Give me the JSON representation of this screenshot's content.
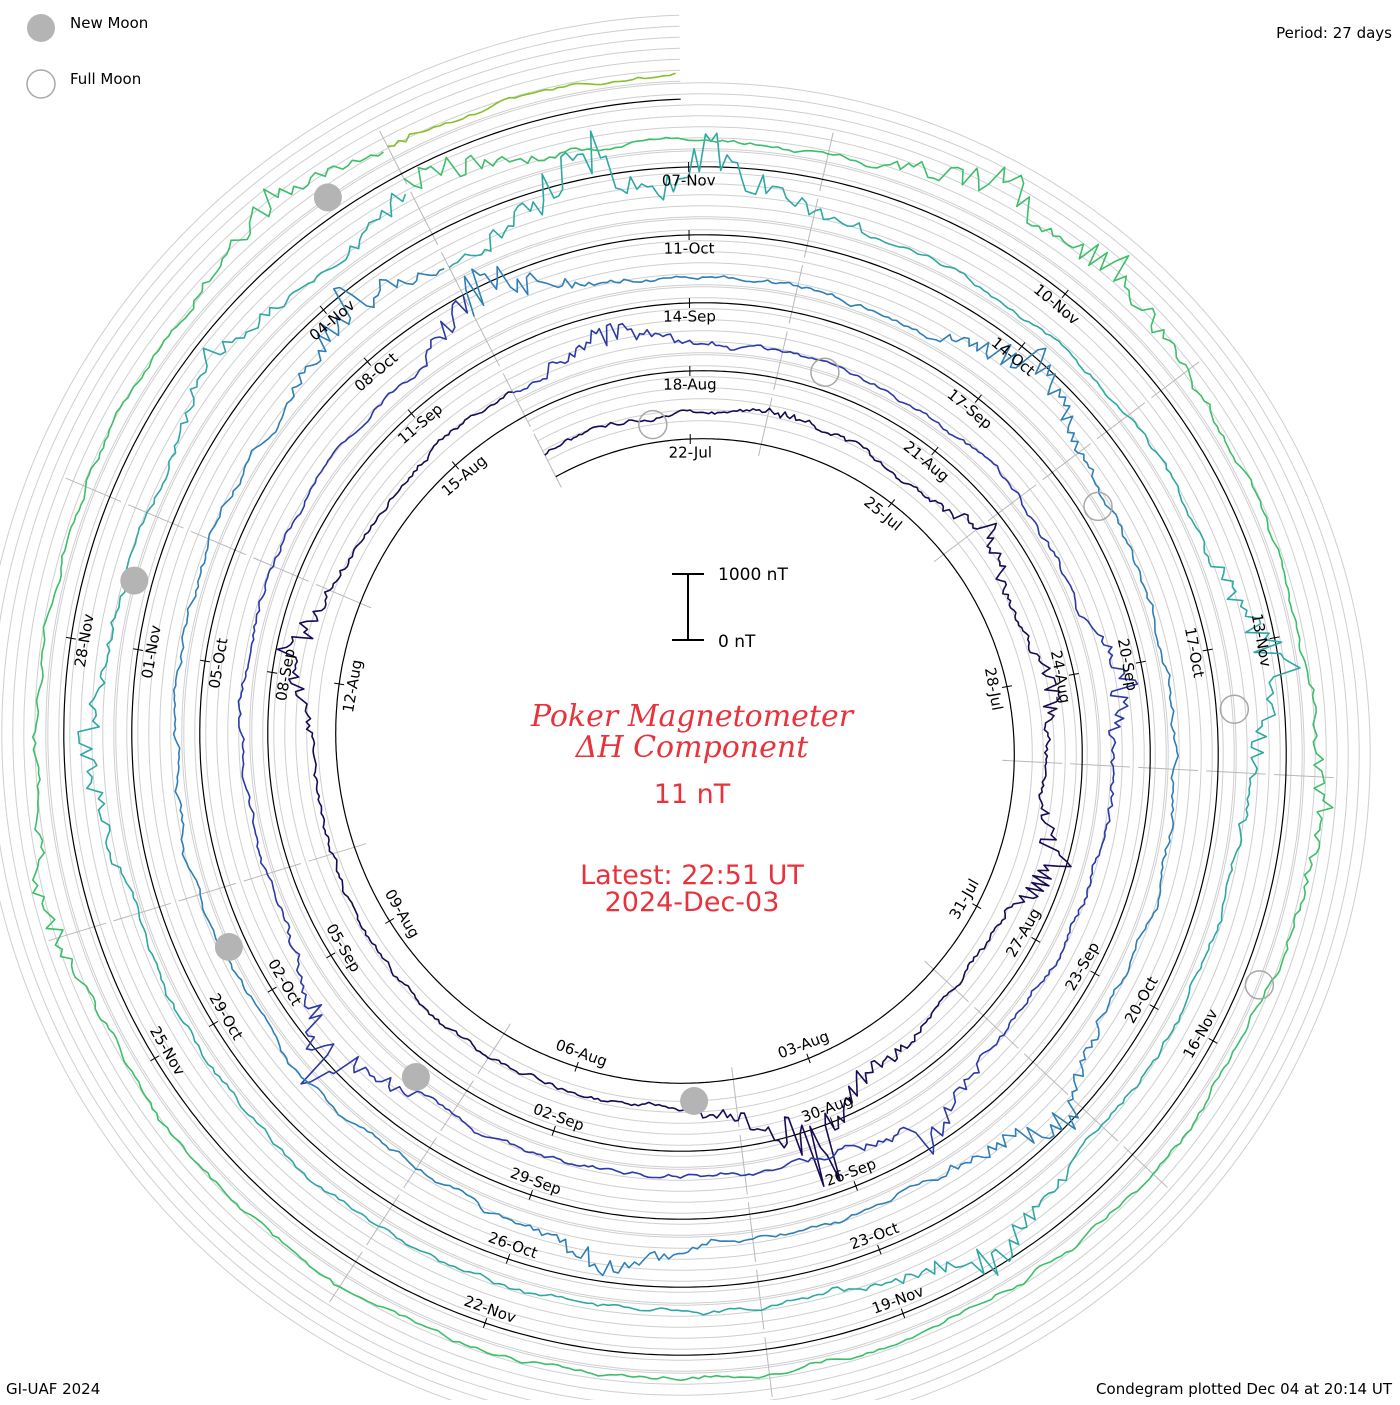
{
  "legend": {
    "new_moon_label": "New Moon",
    "full_moon_label": "Full Moon"
  },
  "period_text": "Period: 27 days",
  "title_line1": "Poker Magnetometer",
  "title_line2": "ΔH Component",
  "scale_value": "11 nT",
  "latest_line1": "Latest: 22:51 UT",
  "latest_line2": "2024-Dec-03",
  "scale_bar": {
    "top_label": "1000 nT",
    "bottom_label": "0 nT"
  },
  "footer_left": "GI-UAF 2024",
  "footer_right": "Condegram plotted Dec 04 at 20:14 UT",
  "colors": {
    "moon_fill": "#b4b4b4",
    "title_red": "#e8323c",
    "series": [
      "#1a0a55",
      "#2b3aa8",
      "#2f7fb8",
      "#2ea8a3",
      "#3cbf6a",
      "#86c02a",
      "#c3a817",
      "#c77818",
      "#b51d12"
    ]
  },
  "chart_data": {
    "type": "line",
    "period_days": 27,
    "start": "20-Jul",
    "end": "03-Dec",
    "units": "nT",
    "date_ticks": [
      "22-Jul",
      "25-Jul",
      "28-Jul",
      "31-Jul",
      "03-Aug",
      "06-Aug",
      "09-Aug",
      "12-Aug",
      "15-Aug",
      "18-Aug",
      "21-Aug",
      "24-Aug",
      "27-Aug",
      "30-Aug",
      "02-Sep",
      "05-Sep",
      "08-Sep",
      "11-Sep",
      "14-Sep",
      "17-Sep",
      "20-Sep",
      "23-Sep",
      "26-Sep",
      "29-Sep",
      "02-Oct",
      "05-Oct",
      "08-Oct",
      "11-Oct",
      "14-Oct",
      "17-Oct",
      "20-Oct",
      "23-Oct",
      "26-Oct",
      "29-Oct",
      "01-Nov",
      "04-Nov",
      "07-Nov",
      "10-Nov",
      "13-Nov",
      "16-Nov",
      "19-Nov",
      "22-Nov",
      "25-Nov",
      "28-Nov"
    ],
    "moon_phases": [
      {
        "type": "full",
        "date": "21-Jul"
      },
      {
        "type": "new",
        "date": "04-Aug"
      },
      {
        "type": "full",
        "date": "19-Aug"
      },
      {
        "type": "new",
        "date": "03-Sep"
      },
      {
        "type": "full",
        "date": "18-Sep"
      },
      {
        "type": "new",
        "date": "02-Oct"
      },
      {
        "type": "full",
        "date": "17-Oct"
      },
      {
        "type": "new",
        "date": "01-Nov"
      },
      {
        "type": "full",
        "date": "15-Nov"
      },
      {
        "type": "new",
        "date": "01-Dec"
      }
    ],
    "disturbances": [
      {
        "date": "23-Jul",
        "nT": 150
      },
      {
        "date": "26-Jul",
        "nT": 500
      },
      {
        "date": "28-Jul",
        "nT": 400
      },
      {
        "date": "30-Jul",
        "nT": 700
      },
      {
        "date": "02-Aug",
        "nT": 300
      },
      {
        "date": "03-Aug",
        "nT": 1400
      },
      {
        "date": "12-Aug",
        "nT": 650
      },
      {
        "date": "17-Aug",
        "nT": 600
      },
      {
        "date": "24-Aug",
        "nT": 450
      },
      {
        "date": "29-Aug",
        "nT": 600
      },
      {
        "date": "04-Sep",
        "nT": 900
      },
      {
        "date": "12-Sep",
        "nT": 900
      },
      {
        "date": "17-Sep",
        "nT": 800
      },
      {
        "date": "24-Sep",
        "nT": 700
      },
      {
        "date": "28-Sep",
        "nT": 500
      },
      {
        "date": "08-Oct",
        "nT": 700
      },
      {
        "date": "10-Oct",
        "nT": 1300
      },
      {
        "date": "11-Oct",
        "nT": 1100
      },
      {
        "date": "17-Oct",
        "nT": 900
      },
      {
        "date": "22-Oct",
        "nT": 700
      },
      {
        "date": "31-Oct",
        "nT": 500
      },
      {
        "date": "03-Nov",
        "nT": 500
      },
      {
        "date": "05-Nov",
        "nT": 700
      },
      {
        "date": "09-Nov",
        "nT": 700
      },
      {
        "date": "10-Nov",
        "nT": 650
      },
      {
        "date": "14-Nov",
        "nT": 300
      },
      {
        "date": "26-Nov",
        "nT": 350
      },
      {
        "date": "01-Dec",
        "nT": 500
      }
    ]
  }
}
